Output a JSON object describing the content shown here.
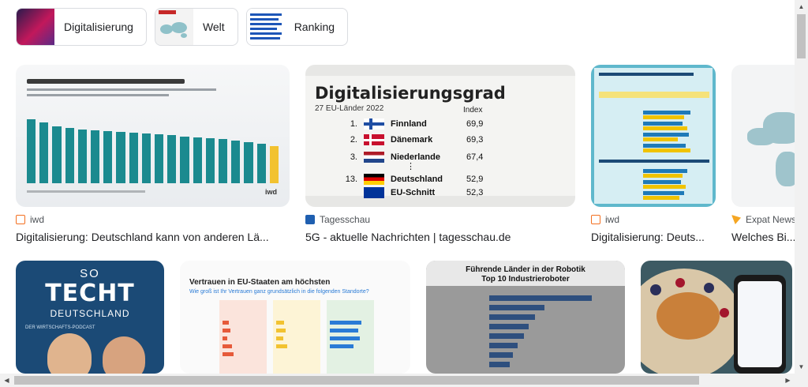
{
  "chips": [
    {
      "label": "Digitalisierung",
      "thumb": "circuit-image"
    },
    {
      "label": "Welt",
      "thumb": "world-map-image"
    },
    {
      "label": "Ranking",
      "thumb": "ranking-chart-image"
    }
  ],
  "row1": [
    {
      "source": "iwd",
      "title": "Digitalisierung: Deutschland kann von anderen Lä...",
      "thumb_title": "Deutschland liegt bei der Digitalisierung zurück",
      "brand": "iwd"
    },
    {
      "source": "Tagesschau",
      "title": "5G - aktuelle Nachrichten | tagesschau.de",
      "chart": {
        "title": "Digitalisierungsgrad",
        "subtitle": "27 EU-Länder 2022",
        "index_header": "Index",
        "rows": [
          {
            "rank": "1.",
            "country": "Finnland",
            "value": "69,9"
          },
          {
            "rank": "2.",
            "country": "Dänemark",
            "value": "69,3"
          },
          {
            "rank": "3.",
            "country": "Niederlande",
            "value": "67,4"
          },
          {
            "rank": "13.",
            "country": "Deutschland",
            "value": "52,9"
          },
          {
            "rank": "",
            "country": "EU-Schnitt",
            "value": "52,3"
          }
        ],
        "ellipsis": "⋮"
      }
    },
    {
      "source": "iwd",
      "title": "Digitalisierung: Deuts...",
      "thumb_title": "Digitalisierung in Deutschland: Einige Lichtblicke"
    },
    {
      "source": "Expat News",
      "title": "Welches Bi..."
    }
  ],
  "row2": [
    {
      "so": "SO",
      "big": "TECHT",
      "sub": "DEUTSCHLAND",
      "pod": "DER WIRTSCHAFTS-PODCAST"
    },
    {
      "title": "Vertrauen in EU-Staaten am höchsten",
      "question": "Wie groß ist Ihr Vertrauen ganz grundsätzlich in die folgenden Standorte?"
    },
    {
      "title": "Führende Länder in der Robotik",
      "title2": "Top 10 Industrieroboter"
    },
    {}
  ],
  "colors": {
    "iwd": "#f37021",
    "tagesschau": "#1f5fb0",
    "expat": "#f5a623",
    "teal": "#1b8a8f"
  }
}
